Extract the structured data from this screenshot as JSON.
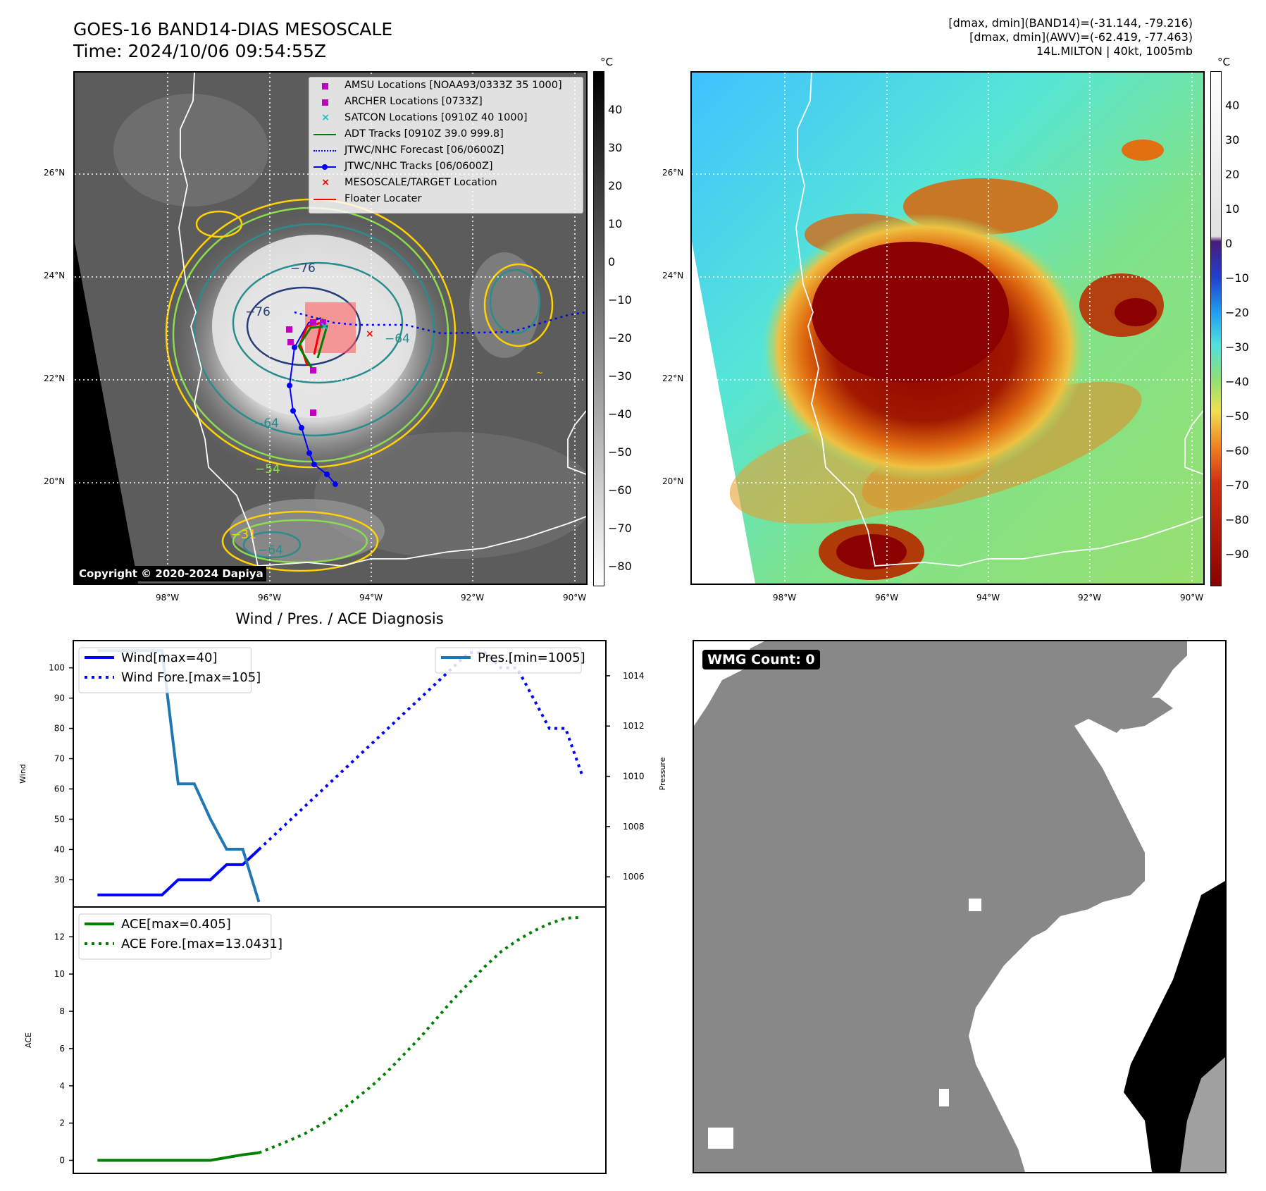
{
  "header": {
    "title_line1": "GOES-16 BAND14-DIAS MESOSCALE",
    "title_line2": "Time: 2024/10/06 09:54:55Z",
    "meta_line1": "[dmax, dmin](BAND14)=(-31.144, -79.216)",
    "meta_line2": "[dmax, dmin](AWV)=(-62.419, -77.463)",
    "meta_line3": "14L.MILTON | 40kt, 1005mb"
  },
  "map": {
    "lat_labels": [
      "26°N",
      "24°N",
      "22°N",
      "20°N"
    ],
    "lon_labels": [
      "98°W",
      "96°W",
      "94°W",
      "92°W",
      "90°W"
    ],
    "copyright": "Copyright © 2020-2024 Dapiya",
    "contour_labels": [
      "−76",
      "−76",
      "−64",
      "−64",
      "−54",
      "−64",
      "−31"
    ],
    "legend": [
      {
        "label": "AMSU Locations [NOAA93/0333Z 35 1000]",
        "color": "#c000c0",
        "marker": "square"
      },
      {
        "label": "ARCHER Locations [0733Z]",
        "color": "#c000c0",
        "marker": "square"
      },
      {
        "label": "SATCON Locations [0910Z 40 1000]",
        "color": "#17becf",
        "marker": "x"
      },
      {
        "label": "ADT Tracks [0910Z 39.0 999.8]",
        "color": "#008000",
        "marker": "line"
      },
      {
        "label": "JTWC/NHC Forecast [06/0600Z]",
        "color": "#0000ff",
        "marker": "dotted"
      },
      {
        "label": "JTWC/NHC Tracks [06/0600Z]",
        "color": "#0000ff",
        "marker": "line-dot"
      },
      {
        "label": "MESOSCALE/TARGET Location",
        "color": "#ff0000",
        "marker": "x"
      },
      {
        "label": "Floater Locater",
        "color": "#ff0000",
        "marker": "line"
      }
    ]
  },
  "colorbar_gray": {
    "unit": "°C",
    "ticks": [
      "40",
      "30",
      "20",
      "10",
      "0",
      "−10",
      "−20",
      "−30",
      "−40",
      "−50",
      "−60",
      "−70",
      "−80"
    ]
  },
  "colorbar_color": {
    "unit": "°C",
    "ticks": [
      "40",
      "30",
      "20",
      "10",
      "0",
      "−10",
      "−20",
      "−30",
      "−40",
      "−50",
      "−60",
      "−70",
      "−80",
      "−90"
    ]
  },
  "diagnosis": {
    "title": "Wind / Pres. / ACE Diagnosis",
    "wmg_label": "WMG Count: 0"
  },
  "chart_data": [
    {
      "type": "line",
      "title": "Wind / Pres. / ACE Diagnosis",
      "ylabel": "Wind",
      "y2label": "Pressure",
      "ylim": [
        21,
        109
      ],
      "y2lim": [
        1004.8,
        1015.4
      ],
      "yticks": [
        30,
        40,
        50,
        60,
        70,
        80,
        90,
        100
      ],
      "y2ticks": [
        1006,
        1008,
        1010,
        1012,
        1014
      ],
      "x": [
        0,
        1,
        2,
        3,
        4,
        5,
        6,
        7,
        8,
        9,
        10,
        11,
        12,
        13,
        14,
        15,
        16,
        17,
        18,
        19,
        20,
        21,
        22,
        23,
        24,
        25,
        26,
        27,
        28,
        29,
        30
      ],
      "xlim": [
        -1.5,
        31.5
      ],
      "series": [
        {
          "name": "Wind[max=40]",
          "axis": "left",
          "style": "solid",
          "color": "#0000ff",
          "x": [
            0,
            1,
            2,
            3,
            4,
            5,
            6,
            7,
            8,
            9,
            10
          ],
          "values": [
            25,
            25,
            25,
            25,
            25,
            30,
            30,
            30,
            35,
            35,
            40
          ]
        },
        {
          "name": "Wind Fore.[max=105]",
          "axis": "left",
          "style": "dotted",
          "color": "#0000ff",
          "x": [
            10,
            11,
            12,
            13,
            14,
            15,
            16,
            17,
            18,
            19,
            20,
            21,
            22,
            23,
            24,
            25,
            26,
            27,
            28,
            29,
            30
          ],
          "values": [
            40,
            45,
            50,
            55,
            60,
            65,
            70,
            75,
            80,
            85,
            90,
            95,
            100,
            105,
            105,
            100,
            100,
            90,
            80,
            80,
            65
          ]
        },
        {
          "name": "Pres.[min=1005]",
          "axis": "right",
          "style": "solid",
          "color": "#1f77b4",
          "x": [
            0,
            1,
            2,
            3,
            4,
            5,
            6,
            7,
            8,
            9,
            10
          ],
          "values": [
            1015,
            1015,
            1015,
            1015,
            1015,
            1009.7,
            1009.7,
            1008.3,
            1007.1,
            1007.1,
            1005
          ]
        }
      ],
      "legend": [
        "Wind[max=40]",
        "Wind Fore.[max=105]",
        "Pres.[min=1005]"
      ]
    },
    {
      "type": "line",
      "ylabel": "ACE",
      "ylim": [
        -0.7,
        13.6
      ],
      "yticks": [
        0,
        2,
        4,
        6,
        8,
        10,
        12
      ],
      "xlim": [
        -1.5,
        31.5
      ],
      "series": [
        {
          "name": "ACE[max=0.405]",
          "style": "solid",
          "color": "#008000",
          "x": [
            0,
            1,
            2,
            3,
            4,
            5,
            6,
            7,
            8,
            9,
            10
          ],
          "values": [
            0,
            0,
            0,
            0,
            0,
            0,
            0,
            0,
            0.15,
            0.3,
            0.405
          ]
        },
        {
          "name": "ACE Fore.[max=13.0431]",
          "style": "dotted",
          "color": "#008000",
          "x": [
            10,
            11,
            12,
            13,
            14,
            15,
            16,
            17,
            18,
            19,
            20,
            21,
            22,
            23,
            24,
            25,
            26,
            27,
            28,
            29,
            30
          ],
          "values": [
            0.405,
            0.75,
            1.1,
            1.5,
            2.0,
            2.6,
            3.3,
            4.0,
            4.8,
            5.7,
            6.6,
            7.6,
            8.6,
            9.5,
            10.4,
            11.2,
            11.8,
            12.3,
            12.7,
            13.0,
            13.04
          ]
        }
      ],
      "legend": [
        "ACE[max=0.405]",
        "ACE Fore.[max=13.0431]"
      ]
    }
  ]
}
